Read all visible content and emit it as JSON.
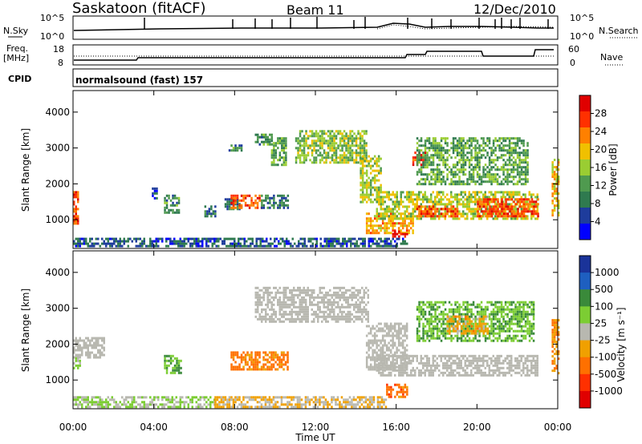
{
  "header": {
    "station": "Saskatoon (fitACF)",
    "beam": "Beam 11",
    "date": "12/Dec/2010"
  },
  "summary_panels": {
    "noise": {
      "left_label": "N.Sky",
      "left_ticks": [
        "10^5",
        "10^0"
      ],
      "right_ticks": [
        "10^5",
        "10^0"
      ],
      "right_label": "N.Search"
    },
    "freq": {
      "left_label_1": "Freq.",
      "left_label_2": "[MHz]",
      "left_ticks": [
        "18",
        "8"
      ],
      "right_ticks": [
        "60",
        "0"
      ],
      "right_label": "Nave"
    },
    "cpid": {
      "label": "CPID",
      "value": "normalsound (fast) 157"
    }
  },
  "colors": {
    "power_scale": [
      "#0000ff",
      "#1e3c9c",
      "#2f7a4f",
      "#4f9a4f",
      "#9acd32",
      "#f0c000",
      "#ff8000",
      "#ff3000",
      "#e00000"
    ],
    "velocity_scale": [
      "#1a3399",
      "#1e5fc0",
      "#3a8a3a",
      "#7ccd33",
      "#b8b8b0",
      "#f0a000",
      "#ff7000",
      "#ff3000",
      "#e00000"
    ],
    "ground_scatter": "#b8b8b0"
  },
  "chart_data": [
    {
      "type": "heatmap",
      "name": "power",
      "title": "",
      "ylabel": "Slant Range [km]",
      "xlabel": "",
      "x_ticks": [
        "00:00",
        "04:00",
        "08:00",
        "12:00",
        "16:00",
        "20:00",
        "00:00"
      ],
      "xlim_hours": [
        0,
        24
      ],
      "ylim": [
        200,
        4600
      ],
      "y_ticks": [
        1000,
        2000,
        3000,
        4000
      ],
      "colorbar": {
        "label": "Power [dB]",
        "ticks": [
          "4",
          "8",
          "12",
          "16",
          "20",
          "24",
          "28"
        ],
        "range": [
          0,
          30
        ]
      },
      "regions": [
        {
          "t0": 0.0,
          "t1": 0.2,
          "r0": 900,
          "r1": 1800,
          "value": 24
        },
        {
          "t0": 0.0,
          "t1": 16.5,
          "r0": 250,
          "r1": 500,
          "value": 6
        },
        {
          "t0": 3.9,
          "t1": 4.1,
          "r0": 1600,
          "r1": 1900,
          "value": 6
        },
        {
          "t0": 4.5,
          "t1": 5.2,
          "r0": 1200,
          "r1": 1700,
          "value": 10
        },
        {
          "t0": 6.5,
          "t1": 7.0,
          "r0": 1100,
          "r1": 1400,
          "value": 8
        },
        {
          "t0": 7.5,
          "t1": 8.3,
          "r0": 1300,
          "r1": 1600,
          "value": 8
        },
        {
          "t0": 7.8,
          "t1": 9.3,
          "r0": 1300,
          "r1": 1700,
          "value": 24
        },
        {
          "t0": 9.3,
          "t1": 10.6,
          "r0": 1300,
          "r1": 1700,
          "value": 8
        },
        {
          "t0": 7.7,
          "t1": 8.3,
          "r0": 2900,
          "r1": 3100,
          "value": 10
        },
        {
          "t0": 9.0,
          "t1": 9.8,
          "r0": 3100,
          "r1": 3400,
          "value": 10
        },
        {
          "t0": 9.8,
          "t1": 10.5,
          "r0": 2500,
          "r1": 3300,
          "value": 12
        },
        {
          "t0": 11.0,
          "t1": 14.5,
          "r0": 2600,
          "r1": 3500,
          "value": 14
        },
        {
          "t0": 14.2,
          "t1": 15.2,
          "r0": 1500,
          "r1": 2800,
          "value": 16
        },
        {
          "t0": 14.5,
          "t1": 16.8,
          "r0": 600,
          "r1": 1200,
          "value": 20
        },
        {
          "t0": 15.8,
          "t1": 16.5,
          "r0": 500,
          "r1": 700,
          "value": 28
        },
        {
          "t0": 15.0,
          "t1": 23.0,
          "r0": 1000,
          "r1": 1800,
          "value": 16
        },
        {
          "t0": 17.0,
          "t1": 19.0,
          "r0": 1100,
          "r1": 1400,
          "value": 24
        },
        {
          "t0": 16.8,
          "t1": 17.4,
          "r0": 2500,
          "r1": 2900,
          "value": 26
        },
        {
          "t0": 17.0,
          "t1": 22.5,
          "r0": 2000,
          "r1": 3300,
          "value": 12
        },
        {
          "t0": 20.0,
          "t1": 23.0,
          "r0": 1100,
          "r1": 1600,
          "value": 24
        },
        {
          "t0": 23.7,
          "t1": 24.0,
          "r0": 1100,
          "r1": 2700,
          "value": 18
        }
      ]
    },
    {
      "type": "heatmap",
      "name": "velocity",
      "title": "",
      "ylabel": "Slant Range [km]",
      "xlabel": "Time UT",
      "x_ticks": [
        "00:00",
        "04:00",
        "08:00",
        "12:00",
        "16:00",
        "20:00",
        "00:00"
      ],
      "xlim_hours": [
        0,
        24
      ],
      "ylim": [
        200,
        4600
      ],
      "y_ticks": [
        1000,
        2000,
        3000,
        4000
      ],
      "colorbar": {
        "label": "Velocity [m s⁻¹]",
        "ticks": [
          "1000",
          "500",
          "100",
          "25",
          "-25",
          "-100",
          "-500",
          "-1000"
        ],
        "range": [
          -1000,
          1000
        ]
      },
      "regions": [
        {
          "t0": 0.0,
          "t1": 0.3,
          "r0": 1300,
          "r1": 1700,
          "value": 200
        },
        {
          "t0": 0.0,
          "t1": 1.5,
          "r0": 1600,
          "r1": 2200,
          "value": 0
        },
        {
          "t0": 0.0,
          "t1": 7.0,
          "r0": 250,
          "r1": 550,
          "value": 100
        },
        {
          "t0": 7.0,
          "t1": 15.5,
          "r0": 250,
          "r1": 550,
          "value": -120
        },
        {
          "t0": 4.5,
          "t1": 5.3,
          "r0": 1200,
          "r1": 1700,
          "value": 300
        },
        {
          "t0": 7.8,
          "t1": 10.6,
          "r0": 1300,
          "r1": 1800,
          "value": -400
        },
        {
          "t0": 9.0,
          "t1": 14.6,
          "r0": 2600,
          "r1": 3600,
          "value": 0
        },
        {
          "t0": 14.5,
          "t1": 16.5,
          "r0": 1300,
          "r1": 2600,
          "value": 0
        },
        {
          "t0": 15.0,
          "t1": 23.0,
          "r0": 1100,
          "r1": 1700,
          "value": 0
        },
        {
          "t0": 15.5,
          "t1": 16.5,
          "r0": 500,
          "r1": 900,
          "value": -450
        },
        {
          "t0": 17.0,
          "t1": 22.8,
          "r0": 2100,
          "r1": 3200,
          "value": 300
        },
        {
          "t0": 18.5,
          "t1": 20.5,
          "r0": 2300,
          "r1": 2800,
          "value": -200
        },
        {
          "t0": 23.7,
          "t1": 24.0,
          "r0": 1200,
          "r1": 2700,
          "value": -300
        }
      ]
    }
  ]
}
